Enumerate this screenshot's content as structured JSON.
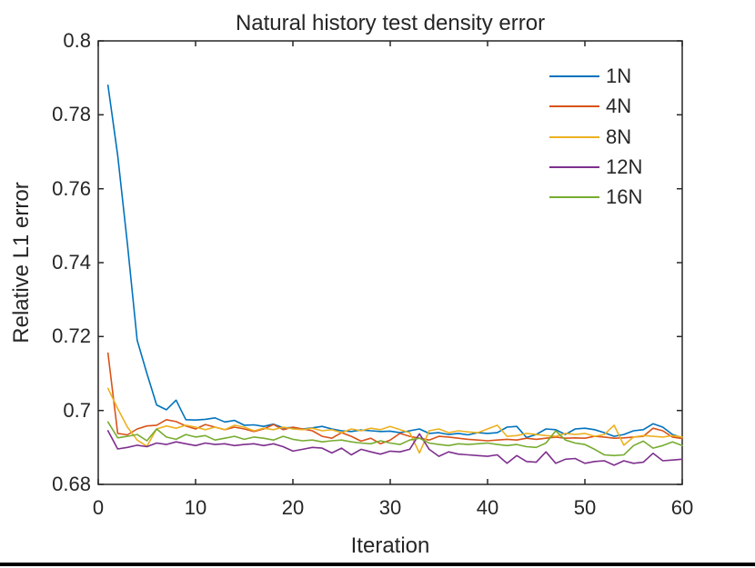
{
  "figure": {
    "background": "#ffffff",
    "axis_color": "#262626",
    "text_color": "#262626",
    "bottom_bar_color": "#000000"
  },
  "chart_data": {
    "type": "line",
    "title": "Natural history test density error",
    "xlabel": "Iteration",
    "ylabel": "Relative L1 error",
    "xlim": [
      0,
      60
    ],
    "ylim": [
      0.68,
      0.8
    ],
    "x_ticks": [
      0,
      10,
      20,
      30,
      40,
      50,
      60
    ],
    "x_tick_labels": [
      "0",
      "10",
      "20",
      "30",
      "40",
      "50",
      "60"
    ],
    "y_ticks": [
      0.68,
      0.7,
      0.72,
      0.74,
      0.76,
      0.78,
      0.8
    ],
    "y_tick_labels": [
      "0.68",
      "0.7",
      "0.72",
      "0.74",
      "0.76",
      "0.78",
      "0.8"
    ],
    "grid": false,
    "box": true,
    "legend_position": "top-right-inside",
    "x": [
      1,
      2,
      3,
      4,
      5,
      6,
      7,
      8,
      9,
      10,
      11,
      12,
      13,
      14,
      15,
      16,
      17,
      18,
      19,
      20,
      21,
      22,
      23,
      24,
      25,
      26,
      27,
      28,
      29,
      30,
      31,
      32,
      33,
      34,
      35,
      36,
      37,
      38,
      39,
      40,
      41,
      42,
      43,
      44,
      45,
      46,
      47,
      48,
      49,
      50,
      51,
      52,
      53,
      54,
      55,
      56,
      57,
      58,
      59,
      60
    ],
    "series": [
      {
        "name": "1N",
        "color": "#0072BD",
        "values": [
          0.788,
          0.769,
          0.745,
          0.719,
          0.71,
          0.7015,
          0.7002,
          0.7028,
          0.6975,
          0.6974,
          0.6976,
          0.698,
          0.6969,
          0.6973,
          0.696,
          0.6961,
          0.6957,
          0.6963,
          0.6953,
          0.6954,
          0.695,
          0.6953,
          0.6957,
          0.695,
          0.6945,
          0.6943,
          0.6947,
          0.6945,
          0.6943,
          0.6944,
          0.694,
          0.6945,
          0.695,
          0.6938,
          0.694,
          0.6935,
          0.6938,
          0.6934,
          0.694,
          0.6938,
          0.694,
          0.6955,
          0.6957,
          0.6927,
          0.6935,
          0.695,
          0.6948,
          0.6935,
          0.695,
          0.6952,
          0.6948,
          0.694,
          0.693,
          0.6935,
          0.6945,
          0.6948,
          0.6964,
          0.6955,
          0.6935,
          0.6926
        ]
      },
      {
        "name": "4N",
        "color": "#D95319",
        "values": [
          0.7155,
          0.6938,
          0.6934,
          0.695,
          0.6958,
          0.696,
          0.6975,
          0.697,
          0.6958,
          0.695,
          0.6962,
          0.6955,
          0.6948,
          0.6955,
          0.695,
          0.6943,
          0.695,
          0.6962,
          0.6948,
          0.6955,
          0.695,
          0.6945,
          0.693,
          0.6925,
          0.694,
          0.693,
          0.6917,
          0.6925,
          0.691,
          0.692,
          0.6938,
          0.693,
          0.6925,
          0.692,
          0.693,
          0.6928,
          0.6925,
          0.6922,
          0.692,
          0.6918,
          0.692,
          0.6922,
          0.692,
          0.6925,
          0.6922,
          0.6925,
          0.6928,
          0.6925,
          0.6926,
          0.6925,
          0.693,
          0.6928,
          0.6925,
          0.6926,
          0.6928,
          0.693,
          0.6952,
          0.6945,
          0.6928,
          0.6924
        ]
      },
      {
        "name": "8N",
        "color": "#EDB120",
        "values": [
          0.706,
          0.7005,
          0.6955,
          0.692,
          0.6903,
          0.695,
          0.6958,
          0.6952,
          0.696,
          0.6955,
          0.6948,
          0.6955,
          0.6948,
          0.696,
          0.6955,
          0.6945,
          0.6952,
          0.6948,
          0.6955,
          0.695,
          0.6948,
          0.6952,
          0.6945,
          0.6948,
          0.694,
          0.695,
          0.6945,
          0.6952,
          0.6948,
          0.6957,
          0.6948,
          0.694,
          0.6885,
          0.6945,
          0.695,
          0.694,
          0.6945,
          0.6942,
          0.694,
          0.695,
          0.696,
          0.693,
          0.6932,
          0.6938,
          0.6935,
          0.6932,
          0.693,
          0.6938,
          0.6935,
          0.6938,
          0.693,
          0.6935,
          0.696,
          0.6906,
          0.6928,
          0.6932,
          0.693,
          0.6928,
          0.6932,
          0.6928
        ]
      },
      {
        "name": "12N",
        "color": "#7E2F8E",
        "values": [
          0.6945,
          0.6896,
          0.69,
          0.6906,
          0.6902,
          0.6912,
          0.6908,
          0.6915,
          0.691,
          0.6905,
          0.6912,
          0.6908,
          0.691,
          0.6905,
          0.6908,
          0.691,
          0.6905,
          0.691,
          0.6902,
          0.689,
          0.6895,
          0.69,
          0.6898,
          0.6885,
          0.6898,
          0.688,
          0.6895,
          0.6888,
          0.6882,
          0.689,
          0.6888,
          0.6895,
          0.6937,
          0.6895,
          0.6876,
          0.6888,
          0.6882,
          0.688,
          0.6878,
          0.6876,
          0.688,
          0.6857,
          0.6878,
          0.6862,
          0.686,
          0.6888,
          0.6857,
          0.6868,
          0.687,
          0.6857,
          0.6862,
          0.6864,
          0.6852,
          0.6864,
          0.6857,
          0.686,
          0.6884,
          0.6864,
          0.6866,
          0.6868
        ]
      },
      {
        "name": "16N",
        "color": "#77AC30",
        "values": [
          0.6969,
          0.6926,
          0.693,
          0.6935,
          0.6918,
          0.695,
          0.6928,
          0.6922,
          0.6935,
          0.6928,
          0.6932,
          0.692,
          0.6925,
          0.693,
          0.6922,
          0.6928,
          0.6925,
          0.692,
          0.693,
          0.6922,
          0.6918,
          0.692,
          0.6915,
          0.6918,
          0.692,
          0.6915,
          0.6912,
          0.691,
          0.6918,
          0.6912,
          0.6908,
          0.692,
          0.6925,
          0.6912,
          0.6908,
          0.6905,
          0.691,
          0.6908,
          0.691,
          0.6912,
          0.6908,
          0.6905,
          0.6908,
          0.6902,
          0.69,
          0.6912,
          0.6945,
          0.692,
          0.6912,
          0.6908,
          0.6895,
          0.688,
          0.6878,
          0.688,
          0.6905,
          0.6917,
          0.6898,
          0.6905,
          0.6915,
          0.6905
        ]
      }
    ]
  }
}
